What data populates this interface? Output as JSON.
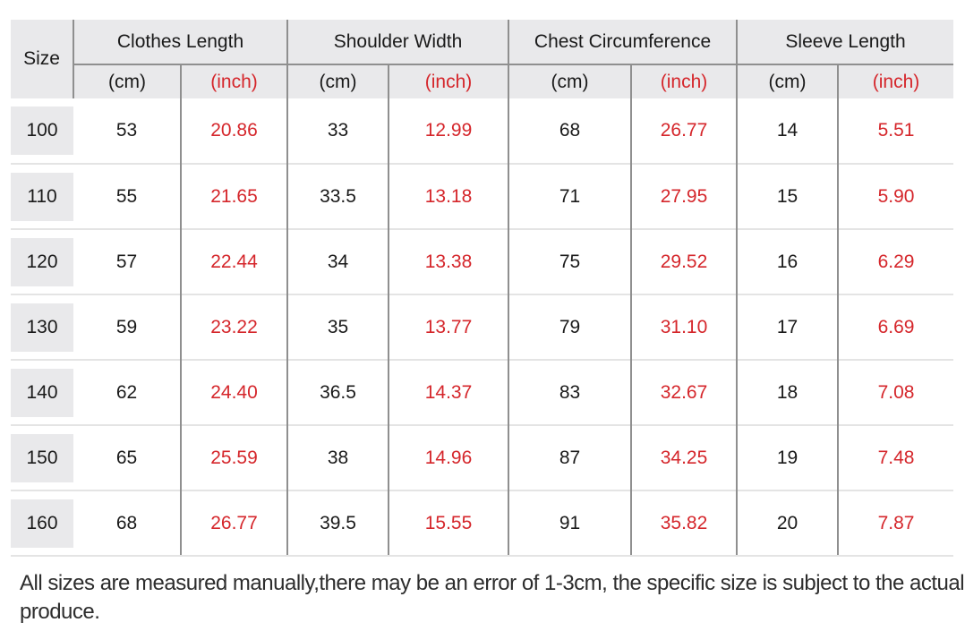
{
  "colors": {
    "header_background": "#e9e9eb",
    "inch_red": "#d5262b",
    "grid_dark": "#8f8f8f",
    "grid_light": "#e4e4e4"
  },
  "table": {
    "size_header": "Size",
    "groups": [
      {
        "label": "Clothes Length"
      },
      {
        "label": "Shoulder Width"
      },
      {
        "label": "Chest Circumference"
      },
      {
        "label": "Sleeve Length"
      }
    ],
    "unit_cm": "(cm)",
    "unit_inch": "(inch)",
    "rows": [
      {
        "size": "100",
        "values": [
          "53",
          "20.86",
          "33",
          "12.99",
          "68",
          "26.77",
          "14",
          "5.51"
        ]
      },
      {
        "size": "110",
        "values": [
          "55",
          "21.65",
          "33.5",
          "13.18",
          "71",
          "27.95",
          "15",
          "5.90"
        ]
      },
      {
        "size": "120",
        "values": [
          "57",
          "22.44",
          "34",
          "13.38",
          "75",
          "29.52",
          "16",
          "6.29"
        ]
      },
      {
        "size": "130",
        "values": [
          "59",
          "23.22",
          "35",
          "13.77",
          "79",
          "31.10",
          "17",
          "6.69"
        ]
      },
      {
        "size": "140",
        "values": [
          "62",
          "24.40",
          "36.5",
          "14.37",
          "83",
          "32.67",
          "18",
          "7.08"
        ]
      },
      {
        "size": "150",
        "values": [
          "65",
          "25.59",
          "38",
          "14.96",
          "87",
          "34.25",
          "19",
          "7.48"
        ]
      },
      {
        "size": "160",
        "values": [
          "68",
          "26.77",
          "39.5",
          "15.55",
          "91",
          "35.82",
          "20",
          "7.87"
        ]
      }
    ]
  },
  "note": "All sizes are measured manually,there may be an error of 1-3cm, the specific size is subject to the actual produce.",
  "chart_data": {
    "type": "table",
    "title": "Garment size chart",
    "column_groups": [
      "Size",
      "Clothes Length",
      "Shoulder Width",
      "Chest Circumference",
      "Sleeve Length"
    ],
    "columns": [
      "Size",
      "Clothes Length (cm)",
      "Clothes Length (inch)",
      "Shoulder Width (cm)",
      "Shoulder Width (inch)",
      "Chest Circumference (cm)",
      "Chest Circumference (inch)",
      "Sleeve Length (cm)",
      "Sleeve Length (inch)"
    ],
    "rows": [
      [
        100,
        53,
        20.86,
        33,
        12.99,
        68,
        26.77,
        14,
        5.51
      ],
      [
        110,
        55,
        21.65,
        33.5,
        13.18,
        71,
        27.95,
        15,
        5.9
      ],
      [
        120,
        57,
        22.44,
        34,
        13.38,
        75,
        29.52,
        16,
        6.29
      ],
      [
        130,
        59,
        23.22,
        35,
        13.77,
        79,
        31.1,
        17,
        6.69
      ],
      [
        140,
        62,
        24.4,
        36.5,
        14.37,
        83,
        32.67,
        18,
        7.08
      ],
      [
        150,
        65,
        25.59,
        38,
        14.96,
        87,
        34.25,
        19,
        7.48
      ],
      [
        160,
        68,
        26.77,
        39.5,
        15.55,
        91,
        35.82,
        20,
        7.87
      ]
    ],
    "note": "All sizes are measured manually,there may be an error of 1-3cm, the specific size is subject to the actual produce."
  }
}
